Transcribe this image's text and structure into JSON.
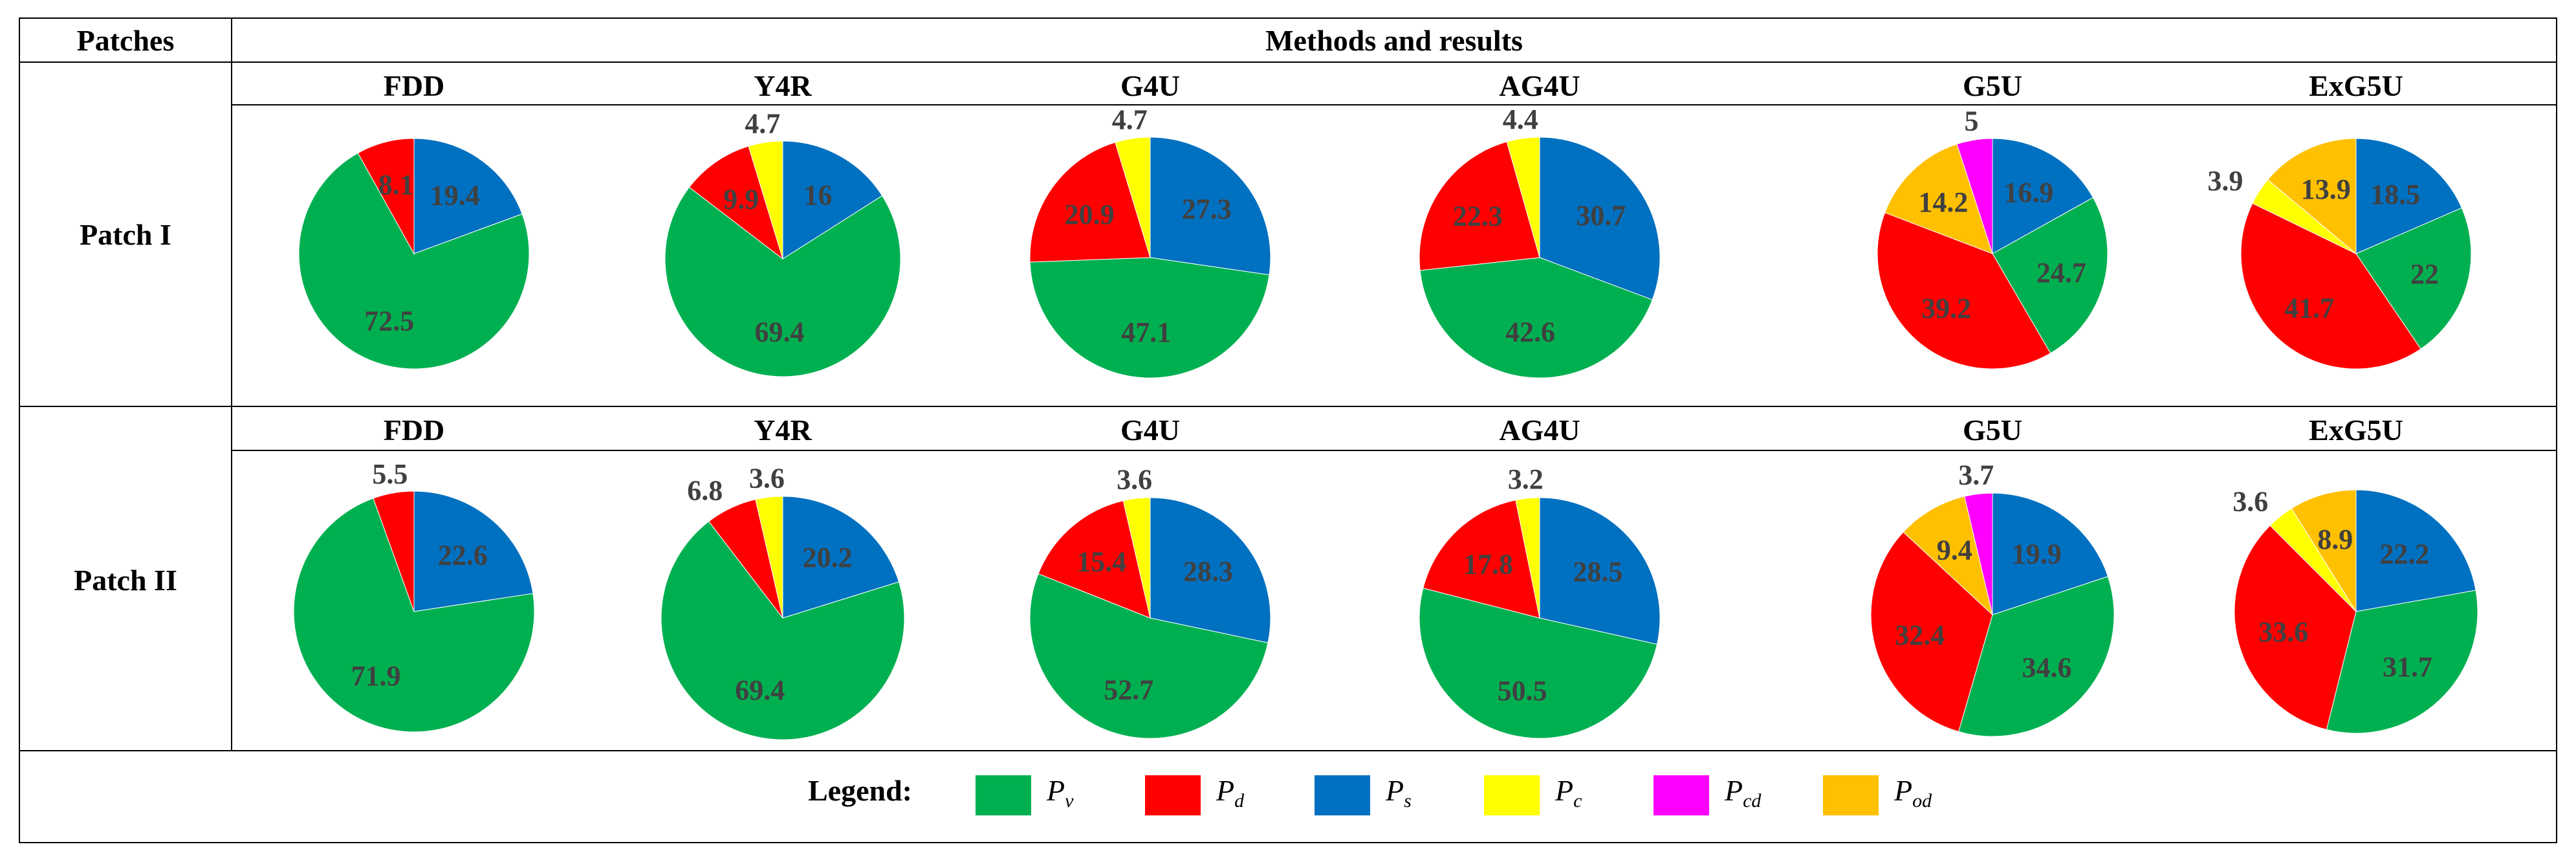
{
  "table": {
    "patches_header": "Patches",
    "methods_header": "Methods and results"
  },
  "colors": {
    "Pv": "#00b050",
    "Pd": "#ff0000",
    "Ps": "#0070c0",
    "Pc": "#ffff00",
    "Pcd": "#ff00ff",
    "Pod": "#ffc000"
  },
  "legend": {
    "title": "Legend:",
    "items": [
      {
        "key": "Pv",
        "symbol": "P",
        "sub": "v"
      },
      {
        "key": "Pd",
        "symbol": "P",
        "sub": "d"
      },
      {
        "key": "Ps",
        "symbol": "P",
        "sub": "s"
      },
      {
        "key": "Pc",
        "symbol": "P",
        "sub": "c"
      },
      {
        "key": "Pcd",
        "symbol": "P",
        "sub": "cd"
      },
      {
        "key": "Pod",
        "symbol": "P",
        "sub": "od"
      }
    ]
  },
  "chart_data": [
    {
      "type": "pie",
      "row": "Patch I",
      "title": "FDD",
      "series": [
        {
          "name": "Ps",
          "value": 19.4
        },
        {
          "name": "Pv",
          "value": 72.5
        },
        {
          "name": "Pd",
          "value": 8.1
        }
      ]
    },
    {
      "type": "pie",
      "row": "Patch I",
      "title": "Y4R",
      "series": [
        {
          "name": "Ps",
          "value": 16
        },
        {
          "name": "Pv",
          "value": 69.4
        },
        {
          "name": "Pd",
          "value": 9.9
        },
        {
          "name": "Pc",
          "value": 4.7
        }
      ]
    },
    {
      "type": "pie",
      "row": "Patch I",
      "title": "G4U",
      "series": [
        {
          "name": "Ps",
          "value": 27.3
        },
        {
          "name": "Pv",
          "value": 47.1
        },
        {
          "name": "Pd",
          "value": 20.9
        },
        {
          "name": "Pc",
          "value": 4.7
        }
      ]
    },
    {
      "type": "pie",
      "row": "Patch I",
      "title": "AG4U",
      "series": [
        {
          "name": "Ps",
          "value": 30.7
        },
        {
          "name": "Pv",
          "value": 42.6
        },
        {
          "name": "Pd",
          "value": 22.3
        },
        {
          "name": "Pc",
          "value": 4.4
        }
      ]
    },
    {
      "type": "pie",
      "row": "Patch I",
      "title": "G5U",
      "series": [
        {
          "name": "Ps",
          "value": 16.9
        },
        {
          "name": "Pv",
          "value": 24.7
        },
        {
          "name": "Pd",
          "value": 39.2
        },
        {
          "name": "Pod",
          "value": 14.2
        },
        {
          "name": "Pcd",
          "value": 5
        }
      ]
    },
    {
      "type": "pie",
      "row": "Patch I",
      "title": "ExG5U",
      "series": [
        {
          "name": "Ps",
          "value": 18.5
        },
        {
          "name": "Pv",
          "value": 22
        },
        {
          "name": "Pd",
          "value": 41.7
        },
        {
          "name": "Pc",
          "value": 3.9
        },
        {
          "name": "Pod",
          "value": 13.9
        }
      ]
    },
    {
      "type": "pie",
      "row": "Patch II",
      "title": "FDD",
      "series": [
        {
          "name": "Ps",
          "value": 22.6
        },
        {
          "name": "Pv",
          "value": 71.9
        },
        {
          "name": "Pd",
          "value": 5.5
        }
      ]
    },
    {
      "type": "pie",
      "row": "Patch II",
      "title": "Y4R",
      "series": [
        {
          "name": "Ps",
          "value": 20.2
        },
        {
          "name": "Pv",
          "value": 69.4
        },
        {
          "name": "Pd",
          "value": 6.8
        },
        {
          "name": "Pc",
          "value": 3.6
        }
      ]
    },
    {
      "type": "pie",
      "row": "Patch II",
      "title": "G4U",
      "series": [
        {
          "name": "Ps",
          "value": 28.3
        },
        {
          "name": "Pv",
          "value": 52.7
        },
        {
          "name": "Pd",
          "value": 15.4
        },
        {
          "name": "Pc",
          "value": 3.6
        }
      ]
    },
    {
      "type": "pie",
      "row": "Patch II",
      "title": "AG4U",
      "series": [
        {
          "name": "Ps",
          "value": 28.5
        },
        {
          "name": "Pv",
          "value": 50.5
        },
        {
          "name": "Pd",
          "value": 17.8
        },
        {
          "name": "Pc",
          "value": 3.2
        }
      ]
    },
    {
      "type": "pie",
      "row": "Patch II",
      "title": "G5U",
      "series": [
        {
          "name": "Ps",
          "value": 19.9
        },
        {
          "name": "Pv",
          "value": 34.6
        },
        {
          "name": "Pd",
          "value": 32.4
        },
        {
          "name": "Pod",
          "value": 9.4
        },
        {
          "name": "Pcd",
          "value": 3.7
        }
      ]
    },
    {
      "type": "pie",
      "row": "Patch II",
      "title": "ExG5U",
      "series": [
        {
          "name": "Ps",
          "value": 22.2
        },
        {
          "name": "Pv",
          "value": 31.7
        },
        {
          "name": "Pd",
          "value": 33.6
        },
        {
          "name": "Pc",
          "value": 3.6
        },
        {
          "name": "Pod",
          "value": 8.9
        }
      ]
    }
  ]
}
